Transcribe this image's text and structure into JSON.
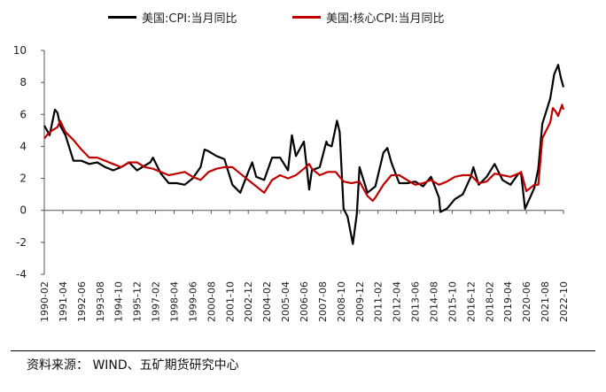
{
  "chart_data": {
    "type": "line",
    "ylim": [
      -4,
      10
    ],
    "yticks": [
      10,
      8,
      6,
      4,
      2,
      0,
      -2,
      -4
    ],
    "xticks": [
      "1990-02",
      "1991-04",
      "1992-06",
      "1993-08",
      "1994-10",
      "1995-12",
      "1997-02",
      "1998-04",
      "1999-06",
      "2000-08",
      "2001-10",
      "2002-12",
      "2004-02",
      "2005-04",
      "2006-06",
      "2007-08",
      "2008-10",
      "2009-12",
      "2011-02",
      "2012-04",
      "2013-06",
      "2014-08",
      "2015-10",
      "2016-12",
      "2018-02",
      "2019-04",
      "2020-06",
      "2021-08",
      "2022-10"
    ],
    "legend": {
      "position": "top"
    },
    "grid": false,
    "series": [
      {
        "name": "美国:CPI:当月同比",
        "color": "#000000",
        "points": [
          [
            "1990-02",
            5.3
          ],
          [
            "1990-06",
            4.7
          ],
          [
            "1990-10",
            6.3
          ],
          [
            "1990-12",
            6.1
          ],
          [
            "1991-02",
            5.3
          ],
          [
            "1991-06",
            4.7
          ],
          [
            "1991-12",
            3.1
          ],
          [
            "1992-06",
            3.1
          ],
          [
            "1992-12",
            2.9
          ],
          [
            "1993-06",
            3.0
          ],
          [
            "1993-12",
            2.7
          ],
          [
            "1994-06",
            2.5
          ],
          [
            "1994-12",
            2.7
          ],
          [
            "1995-06",
            3.0
          ],
          [
            "1995-12",
            2.5
          ],
          [
            "1996-06",
            2.8
          ],
          [
            "1996-10",
            3.0
          ],
          [
            "1996-12",
            3.3
          ],
          [
            "1997-06",
            2.3
          ],
          [
            "1997-12",
            1.7
          ],
          [
            "1998-06",
            1.7
          ],
          [
            "1998-12",
            1.6
          ],
          [
            "1999-06",
            2.0
          ],
          [
            "1999-12",
            2.7
          ],
          [
            "2000-03",
            3.8
          ],
          [
            "2000-06",
            3.7
          ],
          [
            "2000-12",
            3.4
          ],
          [
            "2001-06",
            3.2
          ],
          [
            "2001-12",
            1.6
          ],
          [
            "2002-06",
            1.1
          ],
          [
            "2002-12",
            2.4
          ],
          [
            "2003-03",
            3.0
          ],
          [
            "2003-06",
            2.1
          ],
          [
            "2003-12",
            1.9
          ],
          [
            "2004-06",
            3.3
          ],
          [
            "2004-12",
            3.3
          ],
          [
            "2005-06",
            2.5
          ],
          [
            "2005-09",
            4.7
          ],
          [
            "2005-12",
            3.4
          ],
          [
            "2006-06",
            4.3
          ],
          [
            "2006-10",
            1.3
          ],
          [
            "2006-12",
            2.5
          ],
          [
            "2007-06",
            2.7
          ],
          [
            "2007-11",
            4.3
          ],
          [
            "2007-12",
            4.1
          ],
          [
            "2008-03",
            4.0
          ],
          [
            "2008-07",
            5.6
          ],
          [
            "2008-09",
            4.9
          ],
          [
            "2008-12",
            0.1
          ],
          [
            "2009-03",
            -0.4
          ],
          [
            "2009-07",
            -2.1
          ],
          [
            "2009-10",
            -0.2
          ],
          [
            "2009-12",
            2.7
          ],
          [
            "2010-06",
            1.1
          ],
          [
            "2010-12",
            1.5
          ],
          [
            "2011-06",
            3.6
          ],
          [
            "2011-09",
            3.9
          ],
          [
            "2011-12",
            3.0
          ],
          [
            "2012-06",
            1.7
          ],
          [
            "2012-12",
            1.7
          ],
          [
            "2013-06",
            1.8
          ],
          [
            "2013-12",
            1.5
          ],
          [
            "2014-06",
            2.1
          ],
          [
            "2014-12",
            0.8
          ],
          [
            "2015-01",
            -0.1
          ],
          [
            "2015-06",
            0.1
          ],
          [
            "2015-12",
            0.7
          ],
          [
            "2016-06",
            1.0
          ],
          [
            "2016-12",
            2.1
          ],
          [
            "2017-02",
            2.7
          ],
          [
            "2017-06",
            1.6
          ],
          [
            "2017-12",
            2.1
          ],
          [
            "2018-06",
            2.9
          ],
          [
            "2018-12",
            1.9
          ],
          [
            "2019-06",
            1.6
          ],
          [
            "2019-12",
            2.3
          ],
          [
            "2020-02",
            2.3
          ],
          [
            "2020-05",
            0.1
          ],
          [
            "2020-12",
            1.4
          ],
          [
            "2021-03",
            2.6
          ],
          [
            "2021-06",
            5.4
          ],
          [
            "2021-12",
            7.0
          ],
          [
            "2022-03",
            8.5
          ],
          [
            "2022-06",
            9.1
          ],
          [
            "2022-08",
            8.3
          ],
          [
            "2022-10",
            7.7
          ]
        ]
      },
      {
        "name": "美国:核心CPI:当月同比",
        "color": "#c00000",
        "points": [
          [
            "1990-02",
            4.5
          ],
          [
            "1990-06",
            4.9
          ],
          [
            "1990-12",
            5.2
          ],
          [
            "1991-02",
            5.6
          ],
          [
            "1991-06",
            4.9
          ],
          [
            "1991-12",
            4.4
          ],
          [
            "1992-06",
            3.8
          ],
          [
            "1992-12",
            3.3
          ],
          [
            "1993-06",
            3.3
          ],
          [
            "1993-12",
            3.1
          ],
          [
            "1994-06",
            2.9
          ],
          [
            "1994-12",
            2.7
          ],
          [
            "1995-06",
            3.0
          ],
          [
            "1995-12",
            3.0
          ],
          [
            "1996-06",
            2.7
          ],
          [
            "1996-12",
            2.6
          ],
          [
            "1997-06",
            2.4
          ],
          [
            "1997-12",
            2.2
          ],
          [
            "1998-06",
            2.3
          ],
          [
            "1998-12",
            2.4
          ],
          [
            "1999-06",
            2.1
          ],
          [
            "1999-12",
            1.9
          ],
          [
            "2000-06",
            2.4
          ],
          [
            "2000-12",
            2.6
          ],
          [
            "2001-06",
            2.7
          ],
          [
            "2001-12",
            2.7
          ],
          [
            "2002-06",
            2.3
          ],
          [
            "2002-12",
            1.9
          ],
          [
            "2003-06",
            1.5
          ],
          [
            "2003-12",
            1.1
          ],
          [
            "2004-06",
            1.9
          ],
          [
            "2004-12",
            2.2
          ],
          [
            "2005-06",
            2.0
          ],
          [
            "2005-12",
            2.2
          ],
          [
            "2006-06",
            2.6
          ],
          [
            "2006-10",
            2.9
          ],
          [
            "2006-12",
            2.6
          ],
          [
            "2007-06",
            2.2
          ],
          [
            "2007-12",
            2.4
          ],
          [
            "2008-06",
            2.4
          ],
          [
            "2008-12",
            1.8
          ],
          [
            "2009-06",
            1.7
          ],
          [
            "2009-12",
            1.8
          ],
          [
            "2010-06",
            0.9
          ],
          [
            "2010-10",
            0.6
          ],
          [
            "2010-12",
            0.8
          ],
          [
            "2011-06",
            1.6
          ],
          [
            "2011-12",
            2.2
          ],
          [
            "2012-06",
            2.2
          ],
          [
            "2012-12",
            1.9
          ],
          [
            "2013-06",
            1.6
          ],
          [
            "2013-12",
            1.7
          ],
          [
            "2014-06",
            1.9
          ],
          [
            "2014-12",
            1.6
          ],
          [
            "2015-06",
            1.8
          ],
          [
            "2015-12",
            2.1
          ],
          [
            "2016-06",
            2.2
          ],
          [
            "2016-12",
            2.2
          ],
          [
            "2017-06",
            1.7
          ],
          [
            "2017-12",
            1.8
          ],
          [
            "2018-06",
            2.3
          ],
          [
            "2018-12",
            2.2
          ],
          [
            "2019-06",
            2.1
          ],
          [
            "2019-12",
            2.3
          ],
          [
            "2020-02",
            2.4
          ],
          [
            "2020-06",
            1.2
          ],
          [
            "2020-12",
            1.6
          ],
          [
            "2021-03",
            1.6
          ],
          [
            "2021-06",
            4.5
          ],
          [
            "2021-12",
            5.5
          ],
          [
            "2022-02",
            6.4
          ],
          [
            "2022-04",
            6.2
          ],
          [
            "2022-06",
            5.9
          ],
          [
            "2022-09",
            6.6
          ],
          [
            "2022-10",
            6.3
          ]
        ]
      }
    ]
  },
  "source": "资料来源：  WIND、五矿期货研究中心"
}
